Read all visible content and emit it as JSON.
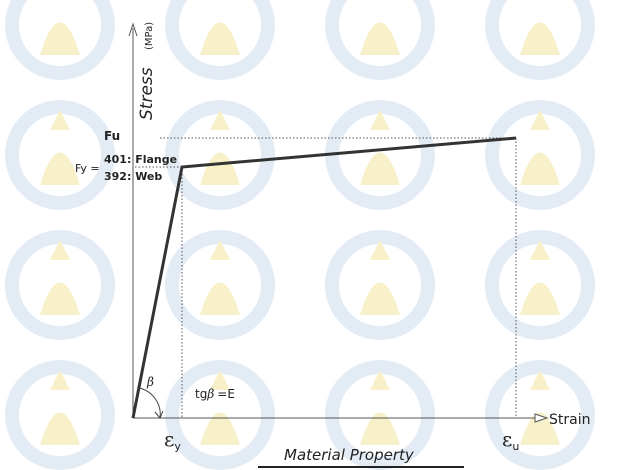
{
  "axes": {
    "y_label": "Stress",
    "y_unit": "(MPa)",
    "x_label": "Strain"
  },
  "labels": {
    "fu": "Fu",
    "fy": "Fy =",
    "fy_flange": "401: Flange",
    "fy_web": "392: Web",
    "eps_y": "ε",
    "eps_y_sub": "y",
    "eps_u": "ε",
    "eps_u_sub": "u",
    "beta": "β",
    "tg": "tg",
    "tg_beta": "β",
    "tg_eq": "=E"
  },
  "caption": "Material Property"
}
